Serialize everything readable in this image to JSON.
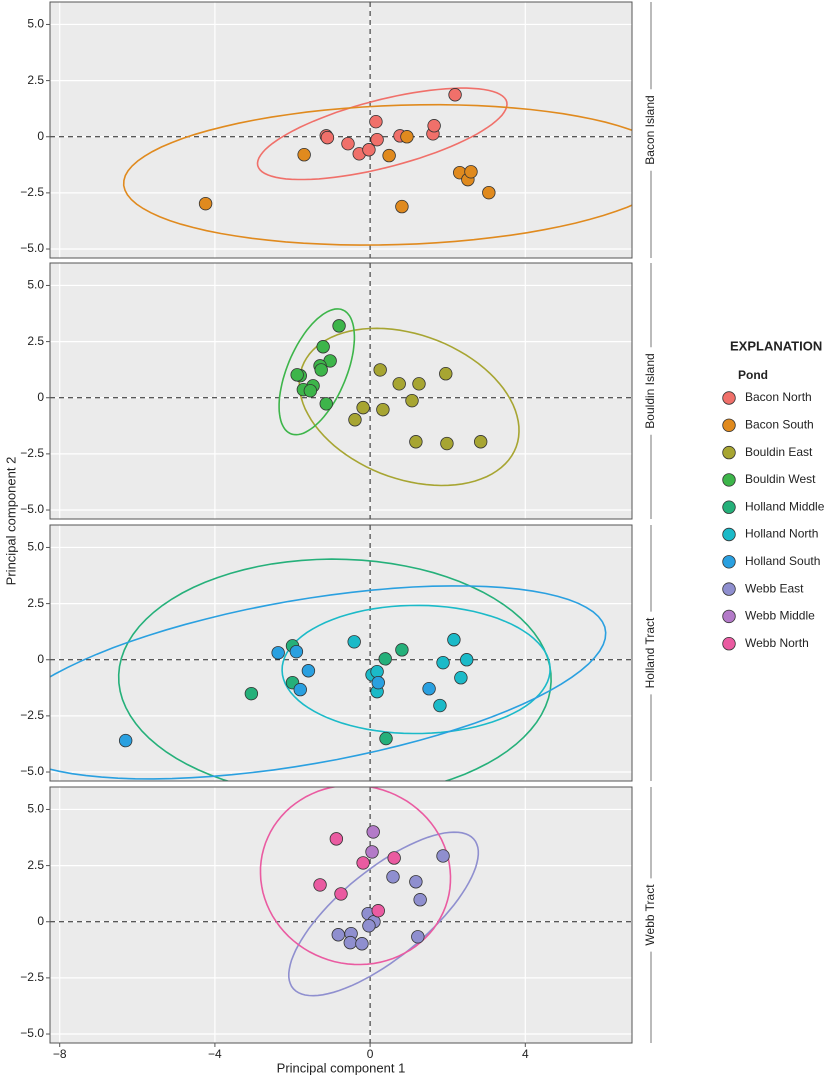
{
  "chart_data": {
    "type": "scatter",
    "xlabel": "Principal component 1",
    "ylabel": "Principal component 2",
    "legend_title": "EXPLANATION",
    "legend_subtitle": "Pond",
    "xlim": [
      -8.25,
      6.75
    ],
    "xticks": [
      {
        "value": -8,
        "label": "−8"
      },
      {
        "value": -4,
        "label": "−4"
      },
      0,
      4
    ],
    "ylim": [
      -5.4,
      6
    ],
    "yticks": [
      {
        "value": 5,
        "label": "5.0"
      },
      {
        "value": 2.5,
        "label": "2.5"
      },
      0,
      {
        "value": -2.5,
        "label": "−2.5"
      },
      {
        "value": -5,
        "label": "−5.0"
      }
    ],
    "grid": true,
    "hline": 0,
    "vline": 0,
    "ellipses": true,
    "panels": [
      {
        "title": "Bacon Island",
        "series": [
          {
            "name": "Bacon North",
            "color": "#f0706a",
            "x": [
              -1.13,
              -1.1,
              -0.57,
              -0.28,
              -0.03,
              0.15,
              0.18,
              0.77,
              1.62,
              1.65,
              2.19
            ],
            "y": [
              0.04,
              -0.04,
              -0.31,
              -0.76,
              -0.58,
              0.67,
              -0.13,
              0.04,
              0.13,
              0.49,
              1.87
            ]
          },
          {
            "name": "Bacon South",
            "color": "#e08a1e",
            "x": [
              -4.24,
              -1.7,
              0.49,
              0.82,
              0.95,
              2.31,
              2.52,
              2.6,
              3.06
            ],
            "y": [
              -2.98,
              -0.8,
              -0.84,
              -3.11,
              0,
              -1.6,
              -1.91,
              -1.56,
              -2.49
            ]
          }
        ]
      },
      {
        "title": "Bouldin Island",
        "series": [
          {
            "name": "Bouldin East",
            "color": "#a7a532",
            "x": [
              0.26,
              0.75,
              1.26,
              1.95,
              -0.18,
              0.33,
              1.08,
              -0.39,
              1.18,
              1.98,
              2.85
            ],
            "y": [
              1.24,
              0.62,
              0.62,
              1.07,
              -0.44,
              -0.53,
              -0.13,
              -0.98,
              -1.96,
              -2.04,
              -1.96
            ]
          },
          {
            "name": "Bouldin West",
            "color": "#3db54a",
            "x": [
              -0.8,
              -1.21,
              -1.03,
              -1.29,
              -1.26,
              -1.8,
              -1.88,
              -1.47,
              -1.72,
              -1.54,
              -1.13
            ],
            "y": [
              3.2,
              2.27,
              1.64,
              1.42,
              1.24,
              0.98,
              1.02,
              0.53,
              0.36,
              0.31,
              -0.27
            ]
          }
        ]
      },
      {
        "title": "Holland Tract",
        "series": [
          {
            "name": "Holland Middle",
            "color": "#25b07a",
            "x": [
              -2.0,
              -2.0,
              -3.06,
              0.39,
              0.82,
              0.41
            ],
            "y": [
              0.62,
              -1.02,
              -1.51,
              0.04,
              0.44,
              -3.51
            ]
          },
          {
            "name": "Holland North",
            "color": "#1bbac8",
            "x": [
              -0.41,
              0.05,
              0.18,
              0.18,
              1.88,
              2.16,
              2.49,
              2.34,
              1.8
            ],
            "y": [
              0.8,
              -0.67,
              -0.53,
              -1.42,
              -0.13,
              0.89,
              0,
              -0.8,
              -2.04
            ]
          },
          {
            "name": "Holland South",
            "color": "#2aa0e0",
            "x": [
              -2.37,
              -1.9,
              -1.59,
              -1.8,
              1.52,
              -6.3,
              0.21
            ],
            "y": [
              0.31,
              0.36,
              -0.49,
              -1.33,
              -1.29,
              -3.6,
              -1.02
            ]
          }
        ]
      },
      {
        "title": "Webb Tract",
        "series": [
          {
            "name": "Webb East",
            "color": "#8f8fcf",
            "x": [
              1.88,
              0.59,
              1.18,
              1.29,
              1.23,
              -0.05,
              0.1,
              -0.03,
              -0.82,
              -0.49,
              -0.51,
              -0.21
            ],
            "y": [
              2.93,
              2.0,
              1.78,
              0.98,
              -0.67,
              0.36,
              0,
              -0.18,
              -0.58,
              -0.53,
              -0.93,
              -0.98
            ]
          },
          {
            "name": "Webb Middle",
            "color": "#b37ac8",
            "x": [
              0.08,
              0.05
            ],
            "y": [
              4.0,
              3.11
            ]
          },
          {
            "name": "Webb North",
            "color": "#ea5ba1",
            "x": [
              -0.87,
              -0.18,
              0.62,
              -1.29,
              -0.75,
              0.21
            ],
            "y": [
              3.69,
              2.62,
              2.84,
              1.64,
              1.24,
              0.49
            ]
          }
        ]
      }
    ]
  }
}
